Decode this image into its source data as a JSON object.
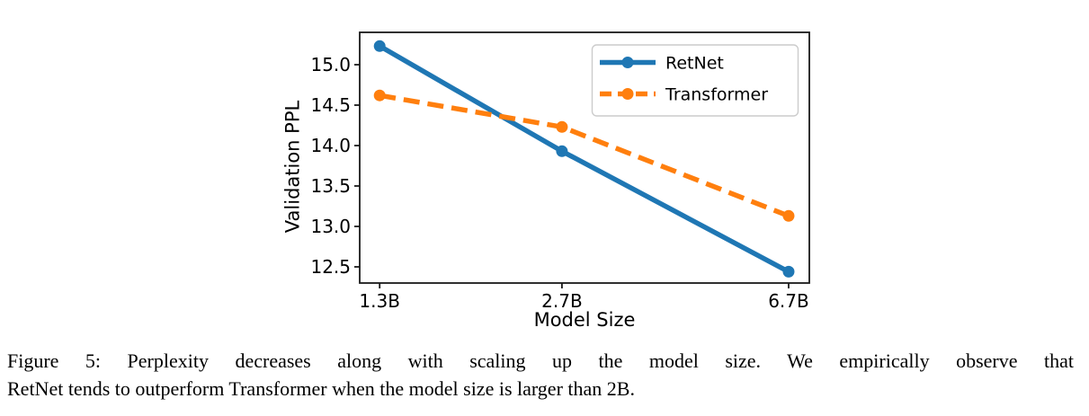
{
  "page": {
    "background": "#ffffff"
  },
  "figure": {
    "caption_line1": "Figure 5: Perplexity decreases along with scaling up the model size. We empirically observe that",
    "caption_line2": "RetNet tends to outperform Transformer when the model size is larger than 2B."
  },
  "chart_data": {
    "type": "line",
    "title": "",
    "xlabel": "Model Size",
    "ylabel": "Validation PPL",
    "xscale": "log",
    "x": [
      1.3,
      2.7,
      6.7
    ],
    "x_tick_labels": [
      "1.3B",
      "2.7B",
      "6.7B"
    ],
    "series": [
      {
        "name": "RetNet",
        "values": [
          15.23,
          13.93,
          12.44
        ],
        "color": "#1f77b4",
        "line_style": "solid",
        "marker": "circle"
      },
      {
        "name": "Transformer",
        "values": [
          14.62,
          14.23,
          13.13
        ],
        "color": "#ff7f0e",
        "line_style": "dashed",
        "marker": "circle"
      }
    ],
    "yticks": [
      15.0,
      14.5,
      14.0,
      13.5,
      13.0,
      12.5
    ],
    "ytick_labels": [
      "15.0",
      "14.5",
      "14.0",
      "13.5",
      "13.0",
      "12.5"
    ],
    "ylim": [
      12.3,
      15.4
    ],
    "xlim": [
      1.2,
      7.28
    ],
    "grid": false,
    "legend": {
      "position": "upper right",
      "entries": [
        "RetNet",
        "Transformer"
      ]
    },
    "axis_color": "#1a1a1a",
    "text_color": "#000000",
    "legend_border_color": "#cccccc"
  }
}
